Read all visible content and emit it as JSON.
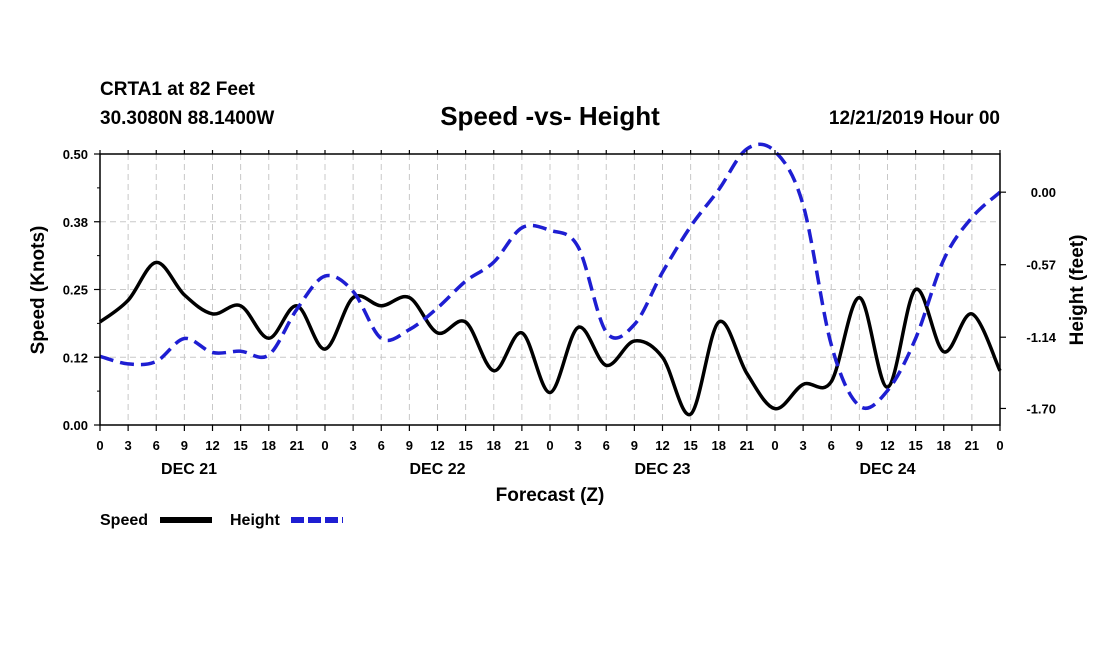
{
  "header": {
    "station": "CRTA1 at 82 Feet",
    "coords": "30.3080N 88.1400W",
    "title": "Speed -vs- Height",
    "run": "12/21/2019 Hour 00"
  },
  "chart_data": {
    "type": "line",
    "title": "Speed -vs- Height",
    "xlabel": "Forecast (Z)",
    "ylabel_left": "Speed (Knots)",
    "ylabel_right": "Height (feet)",
    "x_range_hours": [
      0,
      96
    ],
    "x_tick_labels": [
      "0",
      "3",
      "6",
      "9",
      "12",
      "15",
      "18",
      "21",
      "0",
      "3",
      "6",
      "9",
      "12",
      "15",
      "18",
      "21",
      "0",
      "3",
      "6",
      "9",
      "12",
      "15",
      "18",
      "21",
      "0",
      "3",
      "6",
      "9",
      "12",
      "15",
      "18",
      "21",
      "0"
    ],
    "date_labels": [
      {
        "text": "DEC 21",
        "hour": 9.5
      },
      {
        "text": "DEC 22",
        "hour": 36
      },
      {
        "text": "DEC 23",
        "hour": 60
      },
      {
        "text": "DEC 24",
        "hour": 84
      }
    ],
    "ylim_left": [
      0,
      0.5
    ],
    "left_ticks": [
      "0.00",
      "0.12",
      "0.25",
      "0.38",
      "0.50"
    ],
    "ylim_right": [
      -1.83,
      0.3
    ],
    "right_ticks": [
      {
        "label": "0.00",
        "value": 0.0
      },
      {
        "label": "-0.57",
        "value": -0.57
      },
      {
        "label": "-1.14",
        "value": -1.14
      },
      {
        "label": "-1.70",
        "value": -1.7
      }
    ],
    "grid": true,
    "legend": [
      "Speed",
      "Height"
    ],
    "series": [
      {
        "name": "Speed",
        "axis": "left",
        "color": "#000000",
        "style": "solid",
        "x": [
          0,
          3,
          6,
          9,
          12,
          15,
          18,
          21,
          24,
          27,
          30,
          33,
          36,
          39,
          42,
          45,
          48,
          51,
          54,
          57,
          60,
          63,
          66,
          69,
          72,
          75,
          78,
          81,
          84,
          87,
          90,
          93,
          96
        ],
        "values": [
          0.19,
          0.23,
          0.3,
          0.24,
          0.205,
          0.22,
          0.16,
          0.22,
          0.14,
          0.235,
          0.22,
          0.235,
          0.17,
          0.19,
          0.1,
          0.17,
          0.06,
          0.18,
          0.11,
          0.155,
          0.125,
          0.02,
          0.19,
          0.095,
          0.03,
          0.075,
          0.08,
          0.235,
          0.07,
          0.25,
          0.135,
          0.205,
          0.1
        ]
      },
      {
        "name": "Height",
        "axis": "right",
        "color": "#1e1ed2",
        "style": "dashed",
        "x": [
          0,
          3,
          6,
          9,
          12,
          15,
          18,
          21,
          24,
          27,
          30,
          33,
          36,
          39,
          42,
          45,
          48,
          51,
          54,
          57,
          60,
          63,
          66,
          69,
          72,
          75,
          78,
          81,
          84,
          87,
          90,
          93,
          96
        ],
        "values": [
          -1.29,
          -1.35,
          -1.33,
          -1.15,
          -1.26,
          -1.25,
          -1.28,
          -0.92,
          -0.66,
          -0.78,
          -1.15,
          -1.08,
          -0.91,
          -0.7,
          -0.55,
          -0.28,
          -0.3,
          -0.43,
          -1.1,
          -1.04,
          -0.63,
          -0.27,
          0.02,
          0.34,
          0.32,
          -0.1,
          -1.2,
          -1.68,
          -1.56,
          -1.15,
          -0.53,
          -0.2,
          0.0
        ]
      }
    ]
  },
  "legend": {
    "speed_label": "Speed",
    "height_label": "Height",
    "speed_color": "#000000",
    "height_color": "#1e1ed2"
  }
}
